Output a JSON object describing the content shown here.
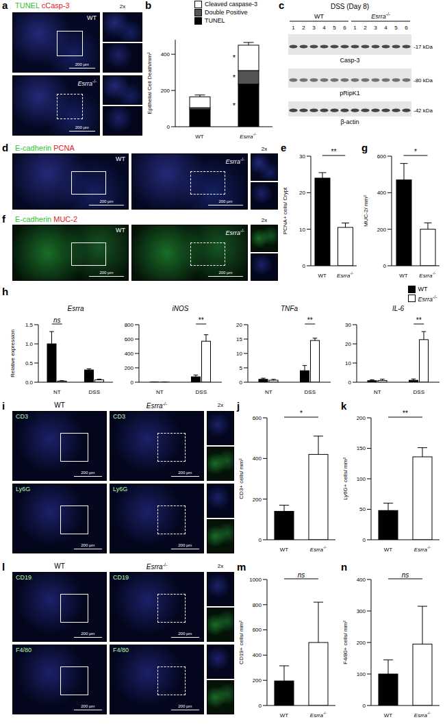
{
  "chart_data": [
    {
      "panel": "b",
      "type": "bar",
      "stacked": true,
      "legend": "top",
      "ylabel": "Epithelial Cell Death/mm²",
      "categories": [
        "WT",
        "Esrra-/-"
      ],
      "series": [
        {
          "name": "TUNEL",
          "color": "#000000",
          "values": [
            95,
            235
          ],
          "errors": [
            8,
            25
          ]
        },
        {
          "name": "Double Positive",
          "color": "#555555",
          "values": [
            10,
            75
          ],
          "errors": [
            4,
            15
          ]
        },
        {
          "name": "Cleaved caspase-3",
          "color": "#ffffff",
          "values": [
            60,
            140
          ],
          "errors": [
            10,
            15
          ]
        }
      ],
      "ylim": [
        0,
        480
      ],
      "yticks": [
        0,
        200,
        400
      ],
      "significance": [
        {
          "text": "*",
          "series": "TUNEL"
        },
        {
          "text": "*",
          "series": "Double Positive"
        },
        {
          "text": "*",
          "series": "Cleaved caspase-3"
        }
      ]
    },
    {
      "panel": "e",
      "type": "bar",
      "ylabel": "PCNA+ cells/ Crypt",
      "categories": [
        "WT",
        "Esrra-/-"
      ],
      "values": [
        24,
        10.5
      ],
      "errors": [
        1.5,
        1.2
      ],
      "colors": [
        "#000000",
        "#ffffff"
      ],
      "ylim": [
        0,
        30
      ],
      "yticks": [
        0,
        10,
        20,
        30
      ],
      "significance": [
        {
          "text": "**"
        }
      ]
    },
    {
      "panel": "g",
      "type": "bar",
      "ylabel": "MUC-2/ mm²",
      "categories": [
        "WT",
        "Esrra-/-"
      ],
      "values": [
        470,
        200
      ],
      "errors": [
        90,
        35
      ],
      "colors": [
        "#000000",
        "#ffffff"
      ],
      "ylim": [
        0,
        600
      ],
      "yticks": [
        0,
        200,
        400,
        600
      ],
      "significance": [
        {
          "text": "*"
        }
      ]
    },
    {
      "panel": "h",
      "type": "bar",
      "title": "Esrra",
      "ylabel": "Relative expression",
      "categories": [
        "NT",
        "DSS"
      ],
      "series": [
        {
          "name": "WT",
          "color": "#000000",
          "values": [
            1.0,
            0.32
          ],
          "errors": [
            0.32,
            0.03
          ]
        },
        {
          "name": "Esrra-/-",
          "color": "#ffffff",
          "values": [
            0.03,
            0.06
          ],
          "errors": [
            0.01,
            0.02
          ]
        }
      ],
      "ylim": [
        0,
        1.5
      ],
      "yticks": [
        {
          "value": 0,
          "label": "0.0"
        },
        0.5,
        {
          "value": 1,
          "label": "1.0"
        },
        1.5
      ],
      "significance": [
        {
          "text": "ns",
          "category": "NT"
        }
      ]
    },
    {
      "type": "bar",
      "title": "iNOS",
      "categories": [
        "NT",
        "DSS"
      ],
      "series": [
        {
          "name": "WT",
          "color": "#000000",
          "values": [
            2,
            75
          ],
          "errors": [
            1,
            25
          ]
        },
        {
          "name": "Esrra-/-",
          "color": "#ffffff",
          "values": [
            1,
            570
          ],
          "errors": [
            1,
            90
          ]
        }
      ],
      "ylim": [
        0,
        800
      ],
      "yticks": [
        0,
        200,
        400,
        600,
        800
      ],
      "significance": [
        {
          "text": "**",
          "category": "DSS"
        }
      ]
    },
    {
      "type": "bar",
      "title": "TNFa",
      "categories": [
        "NT",
        "DSS"
      ],
      "series": [
        {
          "name": "WT",
          "color": "#000000",
          "values": [
            1.0,
            4.0
          ],
          "errors": [
            0.4,
            1.8
          ]
        },
        {
          "name": "Esrra-/-",
          "color": "#ffffff",
          "values": [
            0.7,
            14.5
          ],
          "errors": [
            0.3,
            0.8
          ]
        }
      ],
      "ylim": [
        0,
        20
      ],
      "yticks": [
        0,
        5,
        10,
        15,
        20
      ],
      "significance": [
        {
          "text": "**",
          "category": "DSS"
        }
      ]
    },
    {
      "type": "bar",
      "title": "IL-6",
      "legend": "upper right",
      "categories": [
        "NT",
        "DSS"
      ],
      "series": [
        {
          "name": "WT",
          "color": "#000000",
          "values": [
            0.8,
            1.0
          ],
          "errors": [
            0.5,
            0.7
          ]
        },
        {
          "name": "Esrra-/-",
          "color": "#ffffff",
          "values": [
            0.9,
            22.2
          ],
          "errors": [
            0.7,
            4.2
          ]
        }
      ],
      "ylim": [
        0,
        30
      ],
      "yticks": [
        0,
        10,
        20,
        30
      ],
      "significance": [
        {
          "text": "**",
          "category": "DSS"
        }
      ]
    },
    {
      "panel": "j",
      "type": "bar",
      "ylabel": "CD3+ cells/ mm²",
      "categories": [
        "WT",
        "Esrra-/-"
      ],
      "values": [
        140,
        420
      ],
      "errors": [
        30,
        90
      ],
      "colors": [
        "#000000",
        "#ffffff"
      ],
      "ylim": [
        0,
        600
      ],
      "yticks": [
        0,
        200,
        400,
        600
      ],
      "significance": [
        {
          "text": "*"
        }
      ]
    },
    {
      "panel": "k",
      "type": "bar",
      "ylabel": "Ly6G+ cells/ mm²",
      "categories": [
        "WT",
        "Esrra-/-"
      ],
      "values": [
        48,
        136
      ],
      "errors": [
        12,
        15
      ],
      "colors": [
        "#000000",
        "#ffffff"
      ],
      "ylim": [
        0,
        200
      ],
      "yticks": [
        0,
        50,
        100,
        150,
        200
      ],
      "significance": [
        {
          "text": "**"
        }
      ]
    },
    {
      "panel": "m",
      "type": "bar",
      "ylabel": "CD19+ cells/ mm²",
      "categories": [
        "WT",
        "Esrra-/-"
      ],
      "values": [
        195,
        500
      ],
      "errors": [
        120,
        320
      ],
      "colors": [
        "#000000",
        "#ffffff"
      ],
      "ylim": [
        0,
        1000
      ],
      "yticks": [
        0,
        200,
        400,
        600,
        800,
        1000
      ],
      "significance": [
        {
          "text": "ns"
        }
      ]
    },
    {
      "panel": "n",
      "type": "bar",
      "ylabel": "F4/80+ cells/ mm²",
      "categories": [
        "WT",
        "Esrra-/-"
      ],
      "values": [
        100,
        195
      ],
      "errors": [
        45,
        120
      ],
      "colors": [
        "#000000",
        "#ffffff"
      ],
      "ylim": [
        0,
        400
      ],
      "yticks": [
        0,
        100,
        200,
        300,
        400
      ],
      "significance": [
        {
          "text": "ns"
        }
      ]
    }
  ],
  "images": {
    "a": {
      "panel": "a",
      "stains": [
        {
          "text": "TUNEL",
          "color": "#2bbf2b"
        },
        {
          "text": "cCasp-3",
          "color": "#e0201b"
        }
      ],
      "groups": [
        "WT",
        "Esrra-/-"
      ],
      "inset": "2x",
      "scale_bar": "200 µm"
    },
    "d": {
      "panel": "d",
      "stains": [
        {
          "text": "E-cadherin",
          "color": "#2bbf2b"
        },
        {
          "text": "PCNA",
          "color": "#e0201b"
        }
      ],
      "groups": [
        "WT",
        "Esrra-/-"
      ],
      "inset": "2x",
      "scale_bar": "200 µm"
    },
    "f": {
      "panel": "f",
      "stains": [
        {
          "text": "E-cadherin",
          "color": "#2bbf2b"
        },
        {
          "text": "MUC-2",
          "color": "#e0201b"
        }
      ],
      "groups": [
        "WT",
        "Esrra-/-"
      ],
      "inset": "2x",
      "scale_bar": "200 µm"
    },
    "i": {
      "panel": "i",
      "groups": [
        "WT",
        "Esrra-/-"
      ],
      "markers": [
        "CD3",
        "Ly6G"
      ],
      "inset": "2x",
      "scale_bar": "200 µm"
    },
    "l": {
      "panel": "l",
      "groups": [
        "WT",
        "Esrra-/-"
      ],
      "markers": [
        "CD19",
        "F4/80"
      ],
      "inset": "2x",
      "scale_bar": "200 µm"
    }
  },
  "blot": {
    "panel": "c",
    "title": "DSS (Day 8)",
    "groups": [
      "WT",
      "Esrra-/-"
    ],
    "lanes": [
      "1",
      "2",
      "3",
      "4",
      "5",
      "6"
    ],
    "bands": [
      {
        "name": "Casp-3",
        "size": "-17 kDa"
      },
      {
        "name": "pRipK1",
        "size": "-80 kDa"
      },
      {
        "name": "β-actin",
        "size": "-42 kDa"
      }
    ]
  }
}
